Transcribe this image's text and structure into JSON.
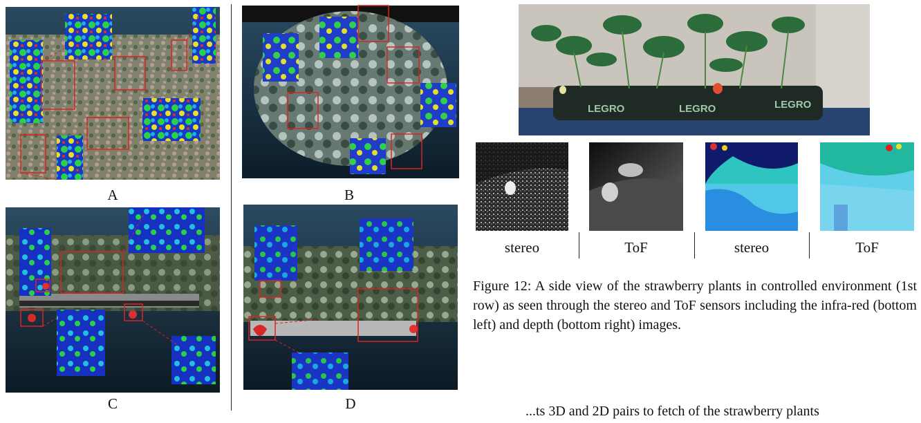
{
  "panels": {
    "a_label": "A",
    "b_label": "B",
    "c_label": "C",
    "d_label": "D"
  },
  "photo_row": {
    "labels": [
      "stereo",
      "ToF",
      "stereo",
      "ToF"
    ],
    "bag_text": [
      "LEGRO",
      "LEGRO",
      "LEGRO"
    ]
  },
  "caption": {
    "text": "Figure 12: A side view of the strawberry plants in controlled environment (1st row) as seen through the stereo and ToF sensors including the infra-red (bottom left) and depth (bottom right) images."
  },
  "body_fragment": "...ts 3D and 2D pairs to fetch of the strawberry plants"
}
